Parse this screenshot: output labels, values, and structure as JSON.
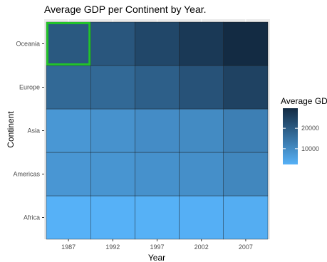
{
  "chart_data": {
    "type": "heatmap",
    "title": "Average GDP per Continent by Year.",
    "xlabel": "Year",
    "ylabel": "Continent",
    "x_categories": [
      "1987",
      "1992",
      "1997",
      "2002",
      "2007"
    ],
    "y_categories": [
      "Africa",
      "Americas",
      "Asia",
      "Europe",
      "Oceania"
    ],
    "values": [
      [
        2283,
        2282,
        2379,
        2599,
        3089
      ],
      [
        7807,
        8045,
        8889,
        9288,
        11003
      ],
      [
        7608,
        8640,
        9834,
        10174,
        12473
      ],
      [
        17061,
        17062,
        19077,
        21712,
        25054
      ],
      [
        20448,
        20894,
        24024,
        26939,
        29810
      ]
    ],
    "highlight": {
      "x": "1987",
      "y": "Oceania",
      "color": "#22c22a"
    },
    "legend": {
      "title": "Average GDP",
      "labels": [
        "20000",
        "10000"
      ],
      "label_values": [
        20000,
        10000
      ],
      "range": [
        2282,
        29810
      ],
      "low_color": "#56b1f7",
      "high_color": "#132b43",
      "position": "right"
    },
    "grid": true,
    "panel_background": "#ebebeb"
  }
}
